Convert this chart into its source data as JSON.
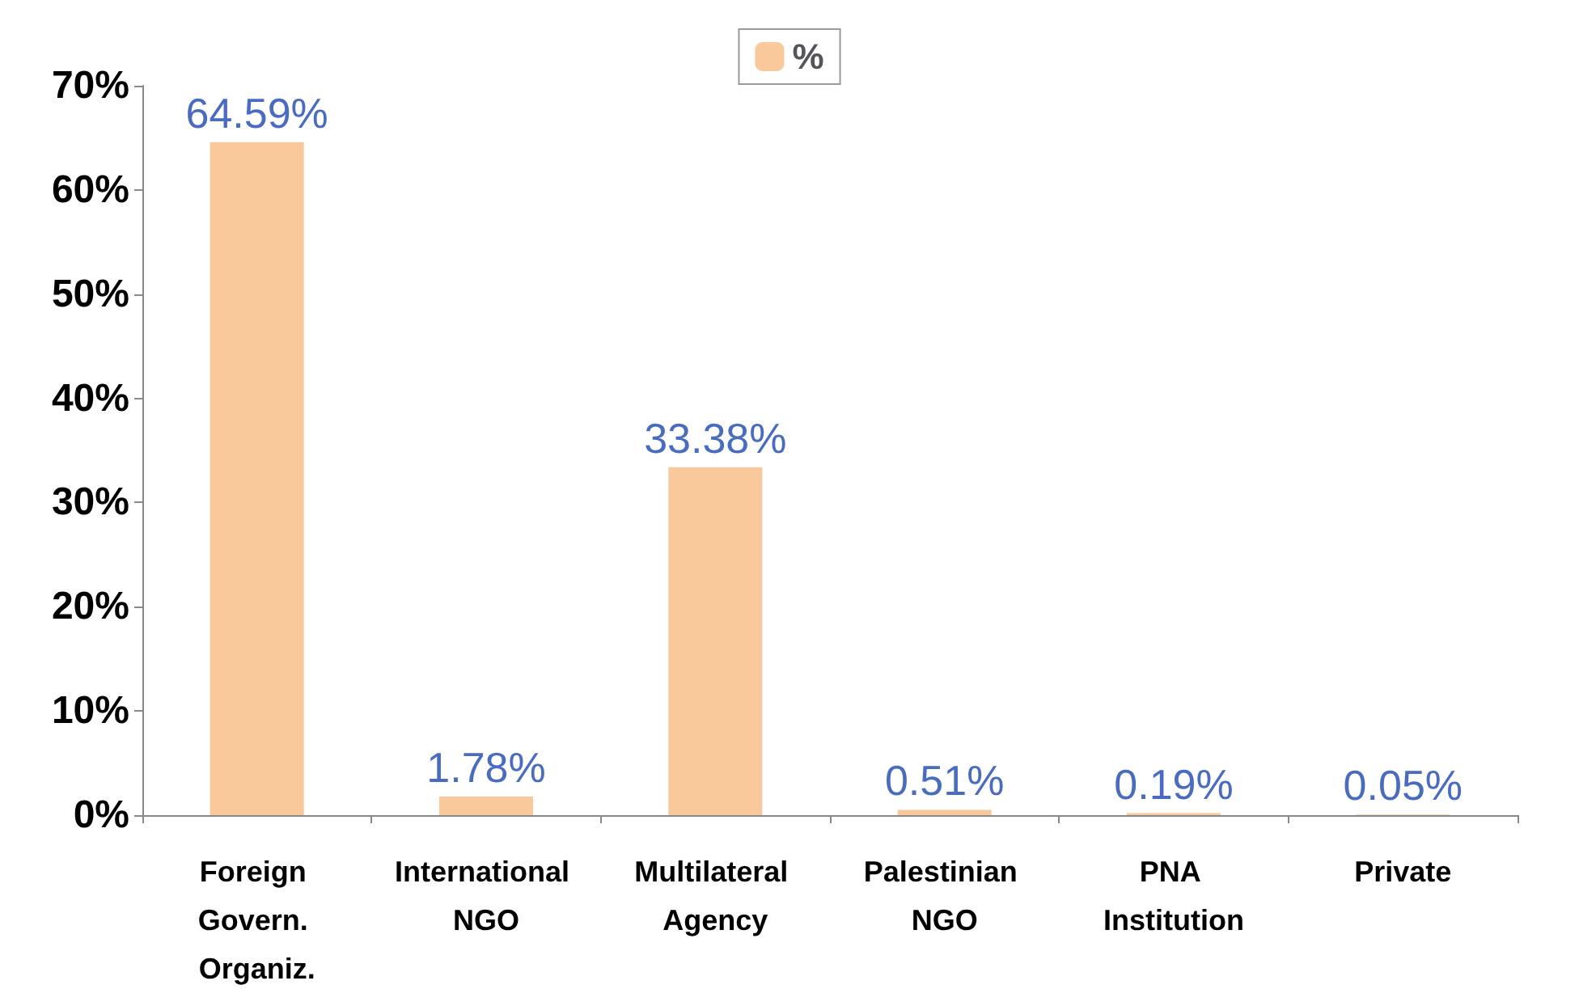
{
  "chart_data": {
    "type": "bar",
    "categories": [
      "Foreign Govern. Organiz.",
      "International NGO",
      "Multilateral Agency",
      "Palestinian NGO",
      "PNA Institution",
      "Private"
    ],
    "series": [
      {
        "name": "%",
        "color": "#f9c89b",
        "values": [
          64.59,
          1.78,
          33.38,
          0.51,
          0.19,
          0.05
        ],
        "value_labels": [
          "64.59%",
          "1.78%",
          "33.38%",
          "0.51%",
          "0.19%",
          "0.05%"
        ]
      }
    ],
    "ylim": [
      0,
      70
    ],
    "yticks": [
      {
        "value": 0,
        "label": "0%"
      },
      {
        "value": 10,
        "label": "10%"
      },
      {
        "value": 20,
        "label": "20%"
      },
      {
        "value": 30,
        "label": "30%"
      },
      {
        "value": 40,
        "label": "40%"
      },
      {
        "value": 50,
        "label": "50%"
      },
      {
        "value": 60,
        "label": "60%"
      },
      {
        "value": 70,
        "label": "70%"
      }
    ],
    "grid": false,
    "legend": "top"
  }
}
